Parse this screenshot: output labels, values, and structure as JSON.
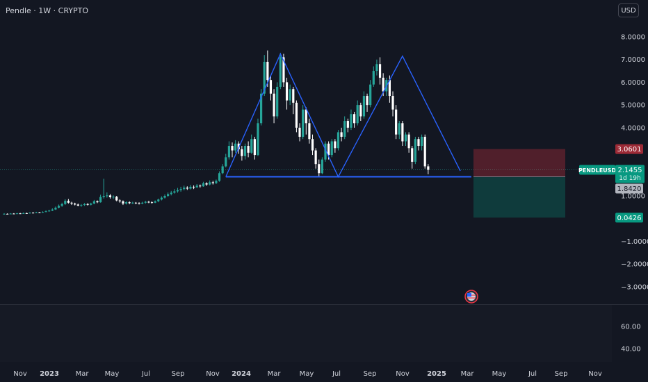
{
  "header": {
    "title": "Pendle · 1W · CRYPTO",
    "currency_button": "USD"
  },
  "price_labels": {
    "stop": "3.0601",
    "symbol": "PENDLEUSD",
    "current": "2.1455",
    "countdown": "1d 19h",
    "entry": "1.8420",
    "target": "0.0426"
  },
  "colors": {
    "background": "#131722",
    "up": "#26a69a",
    "down": "#ffffff",
    "pattern_line": "#2962ff",
    "stop_zone": "#f23645",
    "target_zone": "#089981"
  },
  "chart_data": {
    "type": "candlestick",
    "title": "Pendle · 1W · CRYPTO",
    "y_tick_labels": [
      "8.0000",
      "7.0000",
      "6.0000",
      "5.0000",
      "4.0000",
      "1.0000",
      "−1.0000",
      "−2.0000",
      "−3.0000"
    ],
    "y_tick_values": [
      8,
      7,
      6,
      5,
      4,
      1,
      -1,
      -2,
      -3
    ],
    "volume_tick_labels": [
      "60.00",
      "40.00"
    ],
    "x_tick_labels": [
      "Nov",
      "2023",
      "Mar",
      "May",
      "Jul",
      "Sep",
      "Nov",
      "2024",
      "Mar",
      "May",
      "Jul",
      "Sep",
      "Nov",
      "2025",
      "Mar",
      "May",
      "Jul",
      "Sep",
      "Nov"
    ],
    "x_tick_bold": [
      "2023",
      "2024",
      "2025"
    ],
    "pattern": {
      "type": "double top",
      "points": [
        {
          "week": 69,
          "price": 1.84
        },
        {
          "week": 86,
          "price": 7.25
        },
        {
          "week": 104,
          "price": 1.84
        },
        {
          "week": 124,
          "price": 7.15
        },
        {
          "week": 142,
          "price": 2.1
        }
      ],
      "neckline": {
        "from_week": 69,
        "to_week": 145,
        "price": 1.84
      }
    },
    "position": {
      "entry": 1.842,
      "stop": 3.0601,
      "target": 0.0426
    },
    "candles": [
      [
        0.2,
        0.21,
        0.24,
        0.18
      ],
      [
        0.21,
        0.2,
        0.23,
        0.18
      ],
      [
        0.2,
        0.22,
        0.24,
        0.19
      ],
      [
        0.22,
        0.21,
        0.24,
        0.19
      ],
      [
        0.21,
        0.23,
        0.25,
        0.2
      ],
      [
        0.23,
        0.22,
        0.25,
        0.2
      ],
      [
        0.22,
        0.24,
        0.27,
        0.21
      ],
      [
        0.24,
        0.23,
        0.26,
        0.21
      ],
      [
        0.23,
        0.26,
        0.28,
        0.22
      ],
      [
        0.26,
        0.25,
        0.28,
        0.23
      ],
      [
        0.25,
        0.27,
        0.3,
        0.24
      ],
      [
        0.27,
        0.26,
        0.29,
        0.24
      ],
      [
        0.26,
        0.29,
        0.32,
        0.25
      ],
      [
        0.29,
        0.32,
        0.36,
        0.28
      ],
      [
        0.32,
        0.35,
        0.39,
        0.3
      ],
      [
        0.35,
        0.4,
        0.45,
        0.33
      ],
      [
        0.4,
        0.48,
        0.53,
        0.38
      ],
      [
        0.48,
        0.56,
        0.62,
        0.45
      ],
      [
        0.56,
        0.64,
        0.7,
        0.52
      ],
      [
        0.64,
        0.78,
        0.85,
        0.6
      ],
      [
        0.78,
        0.7,
        0.86,
        0.66
      ],
      [
        0.7,
        0.66,
        0.74,
        0.6
      ],
      [
        0.66,
        0.62,
        0.7,
        0.58
      ],
      [
        0.62,
        0.57,
        0.66,
        0.54
      ],
      [
        0.57,
        0.6,
        0.64,
        0.52
      ],
      [
        0.6,
        0.64,
        0.68,
        0.56
      ],
      [
        0.64,
        0.61,
        0.68,
        0.57
      ],
      [
        0.61,
        0.66,
        0.7,
        0.58
      ],
      [
        0.66,
        0.76,
        0.82,
        0.63
      ],
      [
        0.76,
        0.72,
        0.8,
        0.68
      ],
      [
        0.72,
        0.95,
        1.05,
        0.7
      ],
      [
        0.95,
        1.0,
        1.75,
        0.88
      ],
      [
        1.0,
        1.02,
        1.15,
        0.92
      ],
      [
        1.02,
        0.94,
        1.08,
        0.88
      ],
      [
        0.94,
        0.96,
        1.02,
        0.86
      ],
      [
        0.96,
        0.8,
        1.0,
        0.76
      ],
      [
        0.8,
        0.76,
        0.85,
        0.7
      ],
      [
        0.76,
        0.66,
        0.8,
        0.6
      ],
      [
        0.66,
        0.72,
        0.76,
        0.62
      ],
      [
        0.72,
        0.68,
        0.76,
        0.63
      ],
      [
        0.68,
        0.7,
        0.74,
        0.64
      ],
      [
        0.7,
        0.68,
        0.73,
        0.63
      ],
      [
        0.68,
        0.66,
        0.72,
        0.62
      ],
      [
        0.66,
        0.7,
        0.74,
        0.63
      ],
      [
        0.7,
        0.74,
        0.78,
        0.66
      ],
      [
        0.74,
        0.72,
        0.78,
        0.68
      ],
      [
        0.72,
        0.7,
        0.76,
        0.66
      ],
      [
        0.7,
        0.76,
        0.8,
        0.68
      ],
      [
        0.76,
        0.84,
        0.88,
        0.72
      ],
      [
        0.84,
        0.92,
        0.98,
        0.8
      ],
      [
        0.92,
        1.0,
        1.06,
        0.88
      ],
      [
        1.0,
        1.08,
        1.15,
        0.95
      ],
      [
        1.08,
        1.14,
        1.22,
        1.02
      ],
      [
        1.14,
        1.2,
        1.3,
        1.1
      ],
      [
        1.2,
        1.25,
        1.35,
        1.14
      ],
      [
        1.25,
        1.3,
        1.4,
        1.18
      ],
      [
        1.3,
        1.36,
        1.45,
        1.24
      ],
      [
        1.36,
        1.32,
        1.42,
        1.26
      ],
      [
        1.32,
        1.4,
        1.48,
        1.28
      ],
      [
        1.4,
        1.38,
        1.46,
        1.3
      ],
      [
        1.38,
        1.45,
        1.52,
        1.34
      ],
      [
        1.45,
        1.42,
        1.5,
        1.36
      ],
      [
        1.42,
        1.55,
        1.62,
        1.4
      ],
      [
        1.55,
        1.5,
        1.6,
        1.44
      ],
      [
        1.5,
        1.6,
        1.68,
        1.46
      ],
      [
        1.6,
        1.56,
        1.66,
        1.5
      ],
      [
        1.56,
        1.66,
        1.72,
        1.52
      ],
      [
        1.66,
        2.0,
        2.08,
        1.62
      ],
      [
        2.0,
        2.3,
        2.4,
        1.95
      ],
      [
        2.3,
        2.7,
        2.85,
        2.25
      ],
      [
        2.7,
        3.2,
        3.4,
        2.6
      ],
      [
        3.2,
        3.0,
        3.35,
        2.7
      ],
      [
        3.0,
        3.3,
        3.45,
        2.9
      ],
      [
        3.3,
        3.05,
        3.4,
        2.85
      ],
      [
        3.05,
        2.75,
        3.2,
        2.55
      ],
      [
        2.75,
        3.2,
        3.3,
        2.6
      ],
      [
        3.2,
        2.9,
        3.4,
        2.7
      ],
      [
        2.9,
        3.5,
        3.7,
        2.85
      ],
      [
        3.5,
        2.8,
        3.6,
        2.6
      ],
      [
        2.8,
        4.2,
        4.4,
        2.75
      ],
      [
        4.2,
        5.5,
        5.7,
        4.1
      ],
      [
        5.5,
        6.9,
        7.2,
        5.4
      ],
      [
        6.9,
        6.1,
        7.4,
        5.8
      ],
      [
        6.1,
        5.5,
        6.3,
        5.2
      ],
      [
        5.5,
        4.5,
        5.7,
        4.2
      ],
      [
        4.5,
        5.8,
        6.0,
        4.4
      ],
      [
        5.8,
        7.1,
        7.3,
        5.7
      ],
      [
        7.1,
        6.0,
        7.25,
        5.8
      ],
      [
        6.0,
        5.2,
        6.2,
        4.8
      ],
      [
        5.2,
        5.7,
        5.9,
        5.0
      ],
      [
        5.7,
        5.1,
        5.8,
        4.6
      ],
      [
        5.1,
        4.0,
        5.2,
        3.8
      ],
      [
        4.0,
        3.6,
        4.2,
        3.4
      ],
      [
        3.6,
        4.8,
        5.0,
        3.5
      ],
      [
        4.8,
        4.2,
        4.9,
        3.7
      ],
      [
        4.2,
        3.5,
        4.4,
        3.3
      ],
      [
        3.5,
        3.0,
        3.7,
        2.8
      ],
      [
        3.0,
        2.4,
        3.1,
        2.2
      ],
      [
        2.4,
        2.0,
        2.6,
        1.85
      ],
      [
        2.0,
        2.6,
        2.7,
        1.95
      ],
      [
        2.6,
        3.3,
        3.4,
        2.5
      ],
      [
        3.3,
        2.8,
        3.4,
        2.6
      ],
      [
        2.8,
        3.4,
        3.5,
        2.7
      ],
      [
        3.4,
        3.1,
        3.5,
        2.9
      ],
      [
        3.1,
        3.8,
        3.9,
        3.0
      ],
      [
        3.8,
        3.6,
        4.0,
        3.4
      ],
      [
        3.6,
        4.3,
        4.5,
        3.5
      ],
      [
        4.3,
        4.0,
        4.4,
        3.8
      ],
      [
        4.0,
        4.6,
        4.8,
        3.9
      ],
      [
        4.6,
        4.2,
        4.7,
        4.0
      ],
      [
        4.2,
        5.0,
        5.2,
        4.1
      ],
      [
        5.0,
        4.5,
        5.1,
        4.3
      ],
      [
        4.5,
        5.4,
        5.6,
        4.4
      ],
      [
        5.4,
        5.0,
        5.5,
        4.7
      ],
      [
        5.0,
        5.9,
        6.1,
        4.9
      ],
      [
        5.9,
        6.5,
        6.7,
        5.8
      ],
      [
        6.5,
        6.8,
        7.0,
        6.3
      ],
      [
        6.8,
        6.2,
        7.1,
        5.9
      ],
      [
        6.2,
        5.6,
        6.4,
        5.4
      ],
      [
        5.6,
        6.1,
        6.2,
        5.4
      ],
      [
        6.1,
        5.4,
        6.3,
        5.1
      ],
      [
        5.4,
        4.8,
        5.6,
        4.5
      ],
      [
        4.8,
        3.7,
        5.0,
        3.5
      ],
      [
        3.7,
        4.2,
        4.3,
        3.5
      ],
      [
        4.2,
        3.4,
        4.3,
        3.2
      ],
      [
        3.4,
        3.7,
        3.8,
        3.2
      ],
      [
        3.7,
        3.1,
        3.8,
        2.9
      ],
      [
        3.1,
        2.5,
        3.2,
        2.2
      ],
      [
        2.5,
        3.5,
        3.6,
        2.4
      ],
      [
        3.5,
        3.2,
        3.6,
        3.0
      ],
      [
        3.2,
        3.6,
        3.7,
        3.0
      ],
      [
        3.6,
        2.3,
        3.7,
        2.2
      ],
      [
        2.3,
        2.1455,
        2.4,
        1.95
      ]
    ]
  }
}
